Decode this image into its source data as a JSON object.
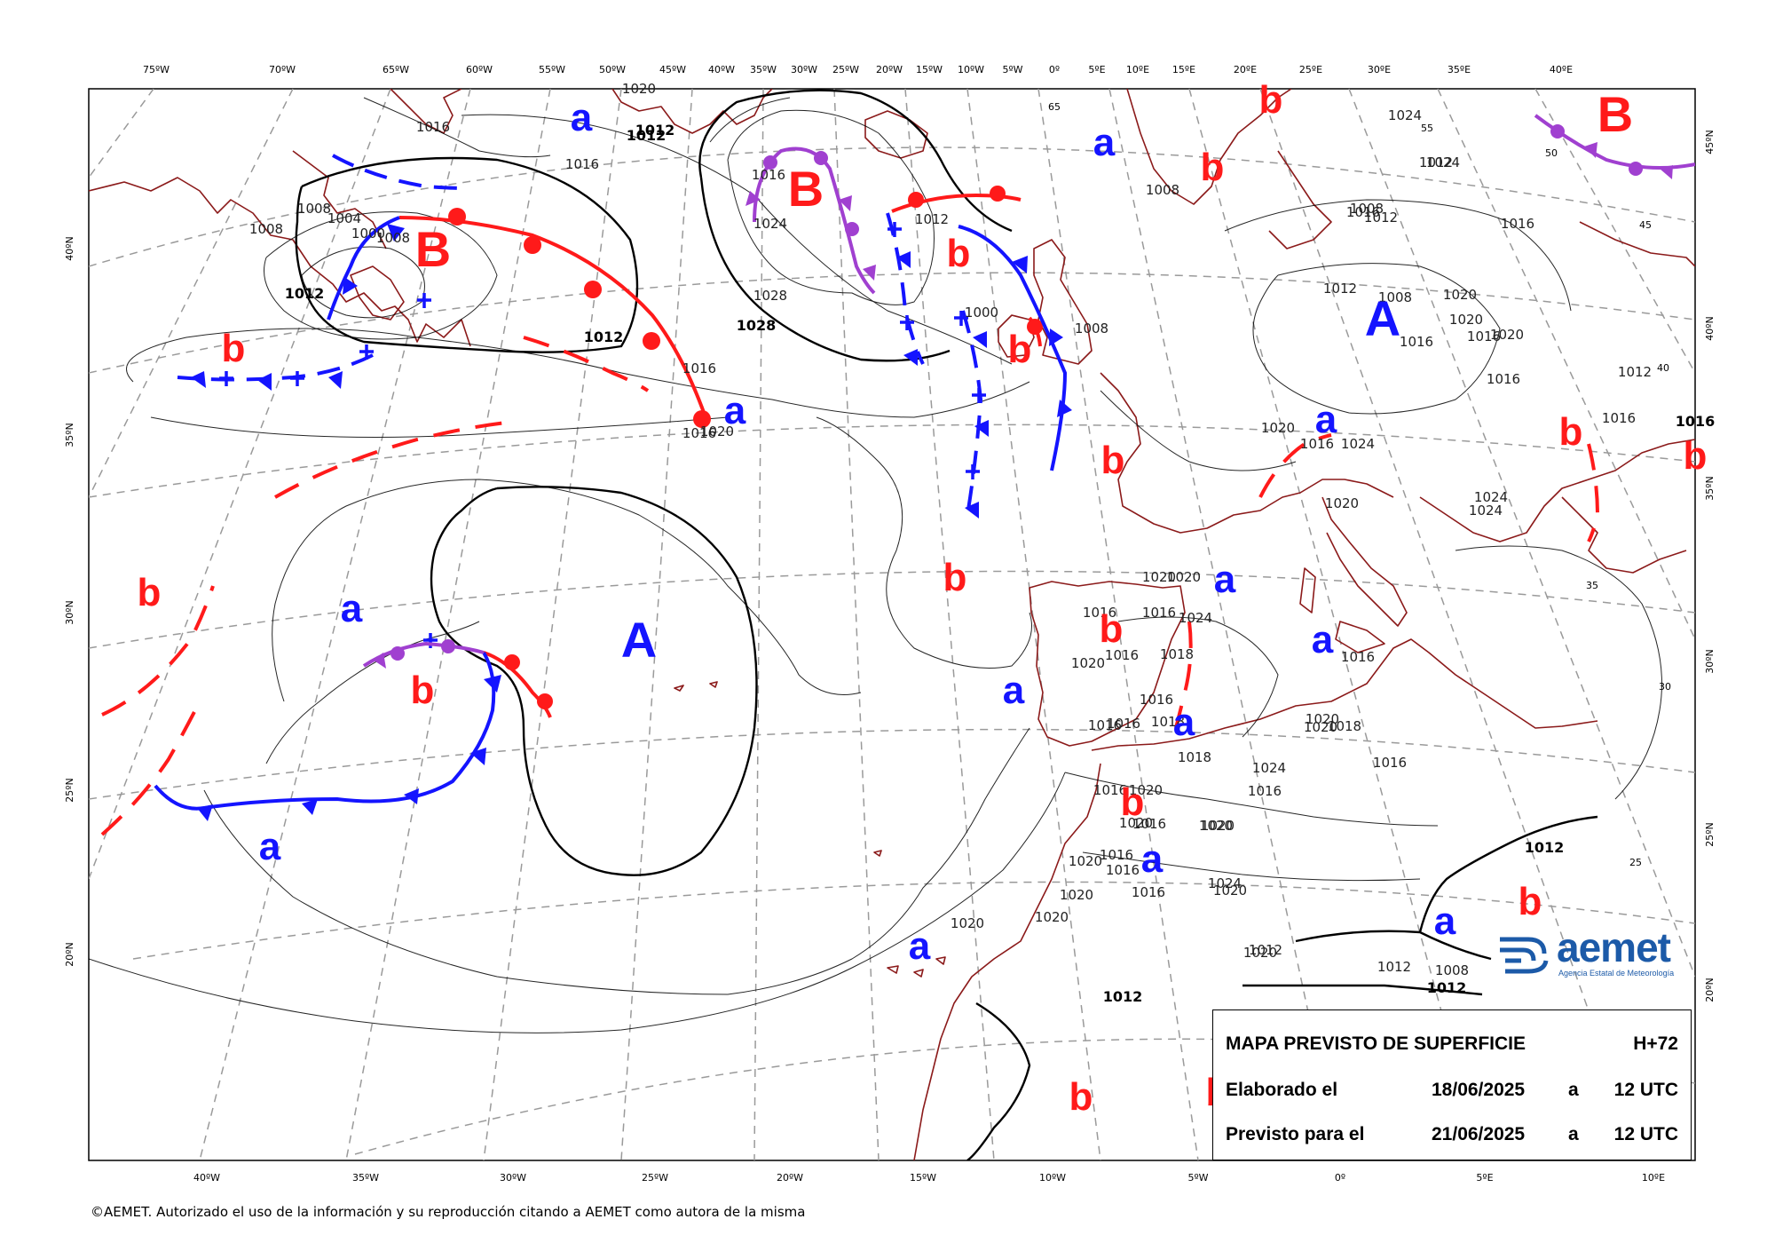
{
  "title_box": {
    "title": "MAPA PREVISTO DE SUPERFICIE",
    "horizon": "H+72",
    "made_label": "Elaborado el",
    "made_date": "18/06/2025",
    "made_at": "a",
    "made_time": "12 UTC",
    "valid_label": "Previsto para el",
    "valid_date": "21/06/2025",
    "valid_at": "a",
    "valid_time": "12 UTC"
  },
  "logo": {
    "word": "aemet",
    "subtitle": "Agencia Estatal de Meteorología"
  },
  "copyright": "©AEMET. Autorizado el uso de la información y su reproducción citando a AEMET como autora de la misma",
  "colors": {
    "coast": "#8b1a1a",
    "warm_front": "#ff1a1a",
    "cold_front": "#1414ff",
    "occluded_front": "#a040d0",
    "isobar": "#000000",
    "grid": "#9a9a9a",
    "low_label": "#ff1a1a",
    "high_label": "#1414ff"
  },
  "lon_labels_top": [
    "75ºW",
    "70ºW",
    "65ºW",
    "60ºW",
    "55ºW",
    "50ºW",
    "45ºW",
    "40ºW",
    "35ºW",
    "30ºW",
    "25ºW",
    "20ºW",
    "15ºW",
    "10ºW",
    "5ºW",
    "0º",
    "5ºE",
    "10ºE",
    "15ºE",
    "20ºE",
    "25ºE",
    "30ºE",
    "35ºE",
    "40ºE"
  ],
  "lon_labels_bottom": [
    "40ºW",
    "35ºW",
    "30ºW",
    "25ºW",
    "20ºW",
    "15ºW",
    "10ºW",
    "5ºW",
    "0º",
    "5ºE",
    "10ºE"
  ],
  "lat_labels_left": [
    "40ºN",
    "35ºN",
    "30ºN",
    "25ºN",
    "20ºN"
  ],
  "lat_labels_right": [
    "45ºN",
    "40ºN",
    "35ºN",
    "30ºN",
    "25ºN",
    "20ºN"
  ],
  "grid_inline_labels": [
    "65",
    "55",
    "50",
    "45",
    "40",
    "35",
    "30",
    "25"
  ],
  "isobar_labels": [
    "1020",
    "1012",
    "1012",
    "1016",
    "1016",
    "1008",
    "1004",
    "1008",
    "1000",
    "1008",
    "1012",
    "1016",
    "1012",
    "1016",
    "1020",
    "1016",
    "1024",
    "1028",
    "1028",
    "1024",
    "1024",
    "1012",
    "1000",
    "1008",
    "1008",
    "1012",
    "1008",
    "1012",
    "1016",
    "1012",
    "1016",
    "1016",
    "1020",
    "1016",
    "1016",
    "1024",
    "1024",
    "1020",
    "1024",
    "1020",
    "1020",
    "1016",
    "1016",
    "1020",
    "1012",
    "1016",
    "1008",
    "1020",
    "1020",
    "1016",
    "1016",
    "1020",
    "1024",
    "1016",
    "1018",
    "1016",
    "1016",
    "1018",
    "1016",
    "1016",
    "1020",
    "1018",
    "1020",
    "1016",
    "1016",
    "1020",
    "1016",
    "1016",
    "1020",
    "1020",
    "1020",
    "1020",
    "1020",
    "1016",
    "1018",
    "1024",
    "1020",
    "1024",
    "1020",
    "1016",
    "1020",
    "1016",
    "1012",
    "1012",
    "1012",
    "1012",
    "1012",
    "1008",
    "1020"
  ],
  "pressure_systems": [
    {
      "text": "B",
      "kind": "low",
      "size": "big"
    },
    {
      "text": "B",
      "kind": "low",
      "size": "big"
    },
    {
      "text": "B",
      "kind": "low",
      "size": "big"
    },
    {
      "text": "A",
      "kind": "high",
      "size": "big"
    },
    {
      "text": "A",
      "kind": "high",
      "size": "big"
    },
    {
      "text": "a",
      "kind": "high",
      "size": "small"
    },
    {
      "text": "a",
      "kind": "high",
      "size": "small"
    },
    {
      "text": "a",
      "kind": "high",
      "size": "small"
    },
    {
      "text": "a",
      "kind": "high",
      "size": "small"
    },
    {
      "text": "a",
      "kind": "high",
      "size": "small"
    },
    {
      "text": "a",
      "kind": "high",
      "size": "small"
    },
    {
      "text": "a",
      "kind": "high",
      "size": "small"
    },
    {
      "text": "a",
      "kind": "high",
      "size": "small"
    },
    {
      "text": "a",
      "kind": "high",
      "size": "small"
    },
    {
      "text": "a",
      "kind": "high",
      "size": "small"
    },
    {
      "text": "a",
      "kind": "high",
      "size": "small"
    },
    {
      "text": "a",
      "kind": "high",
      "size": "small"
    },
    {
      "text": "a",
      "kind": "high",
      "size": "small"
    },
    {
      "text": "b",
      "kind": "low",
      "size": "small"
    },
    {
      "text": "b",
      "kind": "low",
      "size": "small"
    },
    {
      "text": "b",
      "kind": "low",
      "size": "small"
    },
    {
      "text": "b",
      "kind": "low",
      "size": "small"
    },
    {
      "text": "b",
      "kind": "low",
      "size": "small"
    },
    {
      "text": "b",
      "kind": "low",
      "size": "small"
    },
    {
      "text": "b",
      "kind": "low",
      "size": "small"
    },
    {
      "text": "b",
      "kind": "low",
      "size": "small"
    },
    {
      "text": "b",
      "kind": "low",
      "size": "small"
    },
    {
      "text": "b",
      "kind": "low",
      "size": "small"
    },
    {
      "text": "b",
      "kind": "low",
      "size": "small"
    },
    {
      "text": "b",
      "kind": "low",
      "size": "small"
    },
    {
      "text": "b",
      "kind": "low",
      "size": "small"
    },
    {
      "text": "b",
      "kind": "low",
      "size": "small"
    },
    {
      "text": "b",
      "kind": "low",
      "size": "small"
    },
    {
      "text": "b",
      "kind": "low",
      "size": "small"
    }
  ]
}
